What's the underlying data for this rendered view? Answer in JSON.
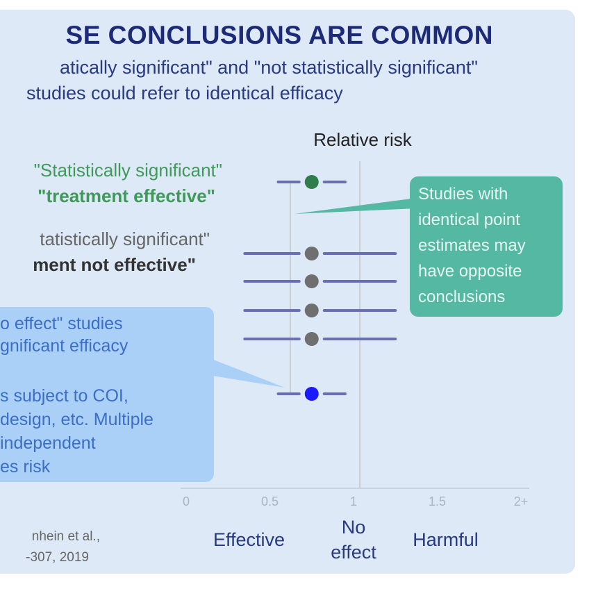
{
  "title": "SE CONCLUSIONS ARE COMMON",
  "subtitle_line1": "atically significant\" and \"not statistically significant\"",
  "subtitle_line2": "studies could refer to identical efficacy",
  "labels": {
    "sig_line1": "\"Statistically significant\"",
    "sig_line2": "\"treatment effective\"",
    "notsig_line1": "tatistically significant\"",
    "notsig_line2": "ment not effective\""
  },
  "callout_blue": [
    "o effect\" studies",
    "gnificant efficacy",
    "",
    "s subject to COI,",
    "design, etc. Multiple",
    "independent",
    "es risk"
  ],
  "callout_green": [
    "Studies with",
    "identical point",
    "estimates may",
    "have opposite",
    "conclusions"
  ],
  "source": [
    "nhein et al.,",
    "-307, 2019"
  ],
  "colors": {
    "panel": "#dde9f6",
    "title": "#1c2a78",
    "sig_green": "#2e7d4a",
    "gray_point": "#6f6f6f",
    "ci_line": "#6a6fb0",
    "blue_point": "#1a1aff",
    "callout_green": "#55b8a2",
    "callout_blue": "#abd0f7"
  },
  "chart_data": {
    "type": "scatter",
    "title": "Relative risk",
    "xlim": [
      0,
      2
    ],
    "null_line": 1,
    "ticks": [
      {
        "v": 0,
        "label": "0"
      },
      {
        "v": 0.5,
        "label": "0.5"
      },
      {
        "v": 1,
        "label": "1"
      },
      {
        "v": 1.5,
        "label": "1.5"
      },
      {
        "v": 2,
        "label": "2+"
      }
    ],
    "region_labels": [
      {
        "v": 0.5,
        "lines": [
          "Effective"
        ]
      },
      {
        "v": 1,
        "lines": [
          "No",
          "effect"
        ]
      },
      {
        "v": 1.5,
        "lines": [
          "Harmful"
        ]
      }
    ],
    "points": [
      {
        "estimate": 0.75,
        "low": 0.55,
        "high": 0.95,
        "color": "sig_green"
      },
      {
        "estimate": 0.75,
        "low": 0.35,
        "high": 1.25,
        "color": "gray_point"
      },
      {
        "estimate": 0.75,
        "low": 0.35,
        "high": 1.25,
        "color": "gray_point"
      },
      {
        "estimate": 0.75,
        "low": 0.35,
        "high": 1.25,
        "color": "gray_point"
      },
      {
        "estimate": 0.75,
        "low": 0.35,
        "high": 1.25,
        "color": "gray_point"
      },
      {
        "estimate": 0.75,
        "low": 0.55,
        "high": 0.95,
        "color": "blue_point"
      }
    ]
  }
}
